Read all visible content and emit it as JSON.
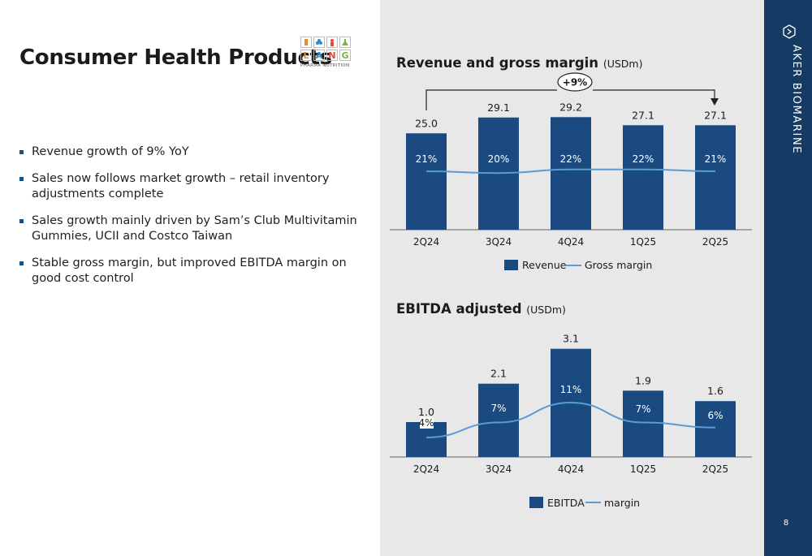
{
  "title": "Consumer Health Products",
  "logo": {
    "letters": [
      "L",
      "A",
      "N",
      "G"
    ],
    "letter_colors": [
      "#e58e2a",
      "#2a8bc9",
      "#e0493b",
      "#7cb342"
    ],
    "tagline": "PHARMA NUTRITION"
  },
  "bullets": [
    "Revenue growth of 9% YoY",
    "Sales now follows market growth – retail inventory adjustments complete",
    "Sales growth mainly driven by Sam’s Club Multivitamin Gummies, UCII and Costco Taiwan",
    "Stable gross margin, but improved EBITDA margin on good cost control"
  ],
  "brand": "AKER BIOMARINE",
  "page_number": "8",
  "colors": {
    "bar": "#1a4a80",
    "line": "#5a9bd5",
    "panel": "#e8e8e8",
    "brandbar": "#153a63"
  },
  "chart_data": [
    {
      "type": "bar",
      "title": "Revenue and gross margin",
      "unit": "(USDm)",
      "categories": [
        "2Q24",
        "3Q24",
        "4Q24",
        "1Q25",
        "2Q25"
      ],
      "series": [
        {
          "name": "Revenue",
          "type": "bar",
          "values": [
            25.0,
            29.1,
            29.2,
            27.1,
            27.1
          ],
          "labels": [
            "25.0",
            "29.1",
            "29.2",
            "27.1",
            "27.1"
          ]
        },
        {
          "name": "Gross margin",
          "type": "line",
          "values": [
            21,
            20,
            22,
            22,
            21
          ],
          "labels": [
            "21%",
            "20%",
            "22%",
            "22%",
            "21%"
          ]
        }
      ],
      "annotation": "+9%",
      "grid": false,
      "legend": "bottom"
    },
    {
      "type": "bar",
      "title": "EBITDA adjusted",
      "unit": "(USDm)",
      "categories": [
        "2Q24",
        "3Q24",
        "4Q24",
        "1Q25",
        "2Q25"
      ],
      "series": [
        {
          "name": "EBITDA",
          "type": "bar",
          "values": [
            1.0,
            2.1,
            3.1,
            1.9,
            1.6
          ],
          "labels": [
            "1.0",
            "2.1",
            "3.1",
            "1.9",
            "1.6"
          ]
        },
        {
          "name": "margin",
          "type": "line",
          "values": [
            4,
            7,
            11,
            7,
            6
          ],
          "labels": [
            "4%",
            "7%",
            "11%",
            "7%",
            "6%"
          ]
        }
      ],
      "grid": false,
      "legend": "bottom"
    }
  ]
}
